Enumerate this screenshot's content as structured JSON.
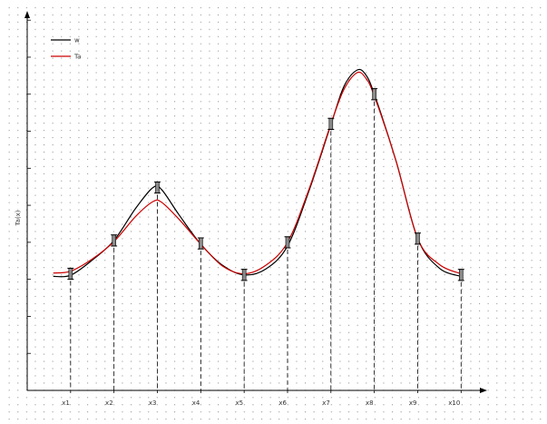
{
  "chart_data": {
    "type": "line",
    "title": "",
    "xlabel": "",
    "ylabel": "Ta(x)",
    "grid": true,
    "legend": "top-left",
    "x": [
      1,
      2,
      3,
      4,
      5,
      6,
      7,
      8,
      9,
      10
    ],
    "x_tick_labels": [
      "x1",
      "x2",
      "x3",
      "x4",
      "x5",
      "x6",
      "x7",
      "x8",
      "x9",
      "x10"
    ],
    "xlim": [
      0,
      10.6
    ],
    "ylim": [
      0,
      10.25
    ],
    "errorbar_halfwidth": 0.15,
    "series": [
      {
        "name": "w",
        "color": "#000000",
        "points": [
          [
            0.6,
            3.08
          ],
          [
            1.0,
            3.11
          ],
          [
            1.5,
            3.52
          ],
          [
            2.0,
            4.05
          ],
          [
            2.5,
            4.92
          ],
          [
            2.9,
            5.48
          ],
          [
            3.1,
            5.42
          ],
          [
            3.5,
            4.74
          ],
          [
            4.0,
            3.95
          ],
          [
            4.5,
            3.38
          ],
          [
            5.0,
            3.12
          ],
          [
            5.5,
            3.28
          ],
          [
            6.0,
            3.9
          ],
          [
            6.5,
            5.41
          ],
          [
            7.0,
            7.18
          ],
          [
            7.3,
            8.21
          ],
          [
            7.6,
            8.65
          ],
          [
            7.8,
            8.53
          ],
          [
            8.0,
            8.0
          ],
          [
            8.5,
            6.2
          ],
          [
            9.0,
            4.1
          ],
          [
            9.5,
            3.3
          ],
          [
            10.0,
            3.08
          ]
        ]
      },
      {
        "name": "Ta",
        "color": "#cc0000",
        "points": [
          [
            0.6,
            3.17
          ],
          [
            1.0,
            3.22
          ],
          [
            1.5,
            3.55
          ],
          [
            2.0,
            4.02
          ],
          [
            2.5,
            4.7
          ],
          [
            2.9,
            5.1
          ],
          [
            3.1,
            5.08
          ],
          [
            3.5,
            4.62
          ],
          [
            4.0,
            3.95
          ],
          [
            4.5,
            3.36
          ],
          [
            5.0,
            3.15
          ],
          [
            5.5,
            3.38
          ],
          [
            6.0,
            4.0
          ],
          [
            6.5,
            5.45
          ],
          [
            7.0,
            7.2
          ],
          [
            7.3,
            8.13
          ],
          [
            7.6,
            8.58
          ],
          [
            7.8,
            8.44
          ],
          [
            8.0,
            7.95
          ],
          [
            8.5,
            6.2
          ],
          [
            9.0,
            4.1
          ],
          [
            9.5,
            3.4
          ],
          [
            10.0,
            3.15
          ]
        ]
      }
    ],
    "markers": [
      [
        1,
        3.15
      ],
      [
        2,
        4.05
      ],
      [
        3,
        5.48
      ],
      [
        4,
        3.97
      ],
      [
        5,
        3.12
      ],
      [
        6,
        4.0
      ],
      [
        7,
        7.2
      ],
      [
        8,
        8.0
      ],
      [
        9,
        4.1
      ],
      [
        10,
        3.12
      ]
    ]
  }
}
